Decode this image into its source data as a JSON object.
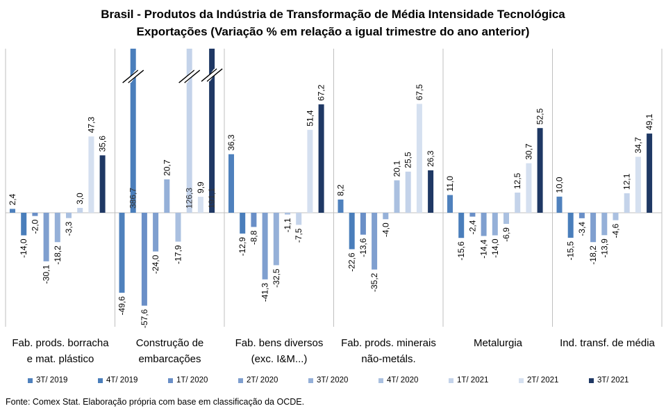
{
  "chart_data": {
    "type": "bar",
    "title": "Brasil - Produtos da Indústria de Transformação de Média Intensidade Tecnológica",
    "subtitle": "Exportações (Variação % em relação a igual trimestre do ano anterior)",
    "categories": [
      "Fab. prods. borracha\ne mat. plástico",
      "Construção de\nembarcações",
      "Fab. bens diversos\n(exc. I&M...)",
      "Fab. prods. minerais\nnão-metáls.",
      "Metalurgia",
      "Ind. transf. de média"
    ],
    "series": [
      {
        "name": "3T/ 2019",
        "color": "#4f81bd",
        "values": [
          2.4,
          -49.6,
          36.3,
          8.2,
          11.0,
          10.0
        ],
        "labels": [
          "2,4",
          "-49,6",
          "36,3",
          "8,2",
          "11,0",
          "10,0"
        ]
      },
      {
        "name": "4T/ 2019",
        "color": "#4a7ebb",
        "values": [
          -14.0,
          386.7,
          -12.9,
          -22.6,
          -15.6,
          -15.5
        ],
        "labels": [
          "-14,0",
          "386,7",
          "-12,9",
          "-22,6",
          "-15,6",
          "-15,5"
        ]
      },
      {
        "name": "1T/ 2020",
        "color": "#6a8fc7",
        "values": [
          -2.0,
          -57.6,
          -8.8,
          -13.6,
          -2.4,
          -3.4
        ],
        "labels": [
          "-2,0",
          "-57,6",
          "-8,8",
          "-13,6",
          "-2,4",
          "-3,4"
        ]
      },
      {
        "name": "2T/ 2020",
        "color": "#7f9fcf",
        "values": [
          -30.1,
          -24.0,
          -41.3,
          -35.2,
          -14.4,
          -18.2
        ],
        "labels": [
          "-30,1",
          "-24,0",
          "-41,3",
          "-35,2",
          "-14,4",
          "-18,2"
        ]
      },
      {
        "name": "3T/ 2020",
        "color": "#95b0d8",
        "values": [
          -18.2,
          20.7,
          -32.5,
          -4.0,
          -14.0,
          -13.9
        ],
        "labels": [
          "-18,2",
          "20,7",
          "-32,5",
          "-4,0",
          "-14,0",
          "-13,9"
        ]
      },
      {
        "name": "4T/ 2020",
        "color": "#aac0e0",
        "values": [
          -3.3,
          -17.9,
          -1.1,
          20.1,
          -6.9,
          -4.6
        ],
        "labels": [
          "-3,3",
          "-17,9",
          "-1,1",
          "20,1",
          "-6,9",
          "-4,6"
        ]
      },
      {
        "name": "1T/ 2021",
        "color": "#c4d3ea",
        "values": [
          3.0,
          126.3,
          -7.5,
          25.5,
          12.5,
          12.1
        ],
        "labels": [
          "3,0",
          "126,3",
          "-7,5",
          "25,5",
          "12,5",
          "12,1"
        ]
      },
      {
        "name": "2T/ 2021",
        "color": "#d5e0f0",
        "values": [
          47.3,
          9.9,
          51.4,
          67.5,
          30.7,
          34.7
        ],
        "labels": [
          "47,3",
          "9,9",
          "51,4",
          "67,5",
          "30,7",
          "34,7"
        ]
      },
      {
        "name": "3T/ 2021",
        "color": "#1f3864",
        "values": [
          35.6,
          191.1,
          67.2,
          26.3,
          52.5,
          49.1
        ],
        "labels": [
          "35,6",
          "191,1",
          "67,2",
          "26,3",
          "52,5",
          "49,1"
        ]
      }
    ],
    "ylim": [
      -70,
      100
    ],
    "axis_break": true,
    "grid": false,
    "legend_position": "bottom"
  },
  "source": "Fonte: Comex Stat. Elaboração própria com base em classificação da OCDE."
}
